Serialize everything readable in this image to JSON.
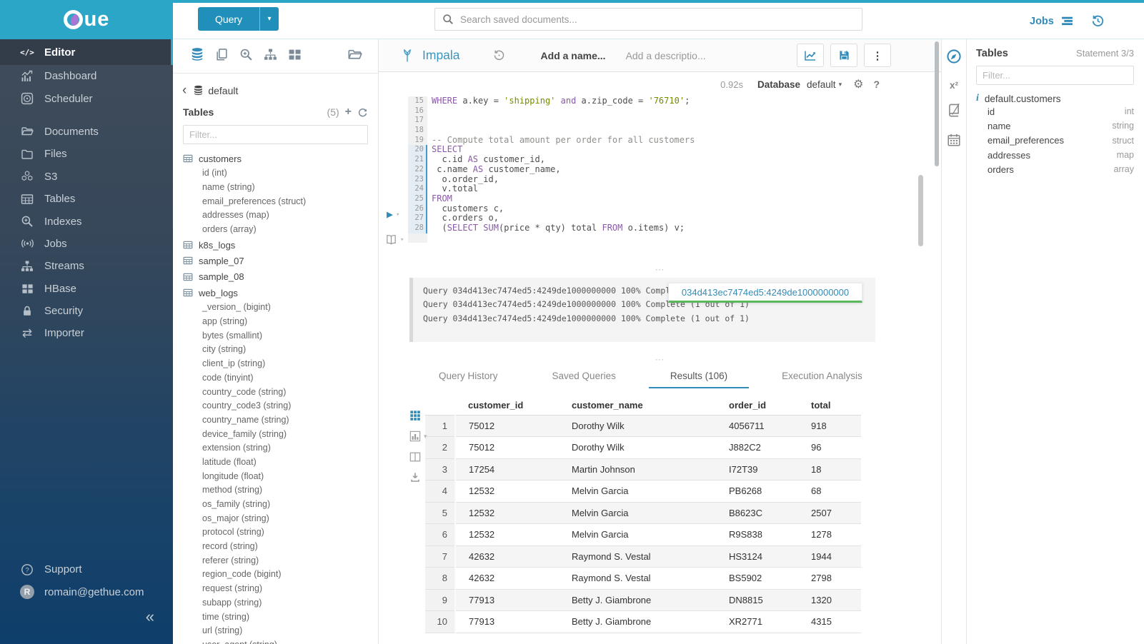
{
  "colors": {
    "brand_teal": "#2BA6C7",
    "primary_blue": "#338bb8",
    "success_green": "#5cb85c"
  },
  "topbar": {
    "query_label": "Query",
    "search_placeholder": "Search saved documents...",
    "jobs_label": "Jobs"
  },
  "sidebar": {
    "items": [
      {
        "label": "Editor",
        "icon": "code",
        "active": true
      },
      {
        "label": "Dashboard",
        "icon": "dashboard"
      },
      {
        "label": "Scheduler",
        "icon": "scheduler",
        "gap_after": true
      },
      {
        "label": "Documents",
        "icon": "folder-open"
      },
      {
        "label": "Files",
        "icon": "folder"
      },
      {
        "label": "S3",
        "icon": "cubes"
      },
      {
        "label": "Tables",
        "icon": "table"
      },
      {
        "label": "Indexes",
        "icon": "search-plus"
      },
      {
        "label": "Jobs",
        "icon": "broadcast"
      },
      {
        "label": "Streams",
        "icon": "sitemap"
      },
      {
        "label": "HBase",
        "icon": "grid"
      },
      {
        "label": "Security",
        "icon": "lock"
      },
      {
        "label": "Importer",
        "icon": "exchange"
      }
    ],
    "support_label": "Support",
    "user_email": "romain@gethue.com",
    "avatar_letter": "R",
    "collapse_glyph": "«"
  },
  "assist": {
    "breadcrumb": "default",
    "tables_label": "Tables",
    "count": "(5)",
    "filter_placeholder": "Filter...",
    "tables": [
      {
        "name": "customers",
        "columns": [
          "id (int)",
          "name (string)",
          "email_preferences (struct)",
          "addresses (map)",
          "orders (array)"
        ]
      },
      {
        "name": "k8s_logs",
        "columns": []
      },
      {
        "name": "sample_07",
        "columns": []
      },
      {
        "name": "sample_08",
        "columns": []
      },
      {
        "name": "web_logs",
        "columns": [
          "_version_ (bigint)",
          "app (string)",
          "bytes (smallint)",
          "city (string)",
          "client_ip (string)",
          "code (tinyint)",
          "country_code (string)",
          "country_code3 (string)",
          "country_name (string)",
          "device_family (string)",
          "extension (string)",
          "latitude (float)",
          "longitude (float)",
          "method (string)",
          "os_family (string)",
          "os_major (string)",
          "protocol (string)",
          "record (string)",
          "referer (string)",
          "region_code (bigint)",
          "request (string)",
          "subapp (string)",
          "time (string)",
          "url (string)",
          "user_agent (string)"
        ]
      }
    ]
  },
  "editor": {
    "engine": "Impala",
    "name_placeholder": "Add a name...",
    "desc_placeholder": "Add a descriptio...",
    "exec_time": "0.92s",
    "database_label": "Database",
    "database_value": "default",
    "code": {
      "active_from": 20,
      "active_to": 28,
      "lines": [
        {
          "n": 15,
          "seg": [
            [
              "WHERE ",
              "k"
            ],
            [
              "a.key = ",
              "t"
            ],
            [
              "'shipping'",
              "s"
            ],
            [
              " ",
              "t"
            ],
            [
              "and",
              "k"
            ],
            [
              " a.zip_code = ",
              "t"
            ],
            [
              "'76710'",
              "s"
            ],
            [
              ";",
              "t"
            ]
          ]
        },
        {
          "n": 16,
          "seg": []
        },
        {
          "n": 17,
          "seg": []
        },
        {
          "n": 18,
          "seg": []
        },
        {
          "n": 19,
          "seg": [
            [
              "-- Compute total amount per order for all customers",
              "c"
            ]
          ]
        },
        {
          "n": 20,
          "seg": [
            [
              "SELECT",
              "k"
            ]
          ]
        },
        {
          "n": 21,
          "seg": [
            [
              "  c.id ",
              "t"
            ],
            [
              "AS",
              "k"
            ],
            [
              " customer_id,",
              "t"
            ]
          ]
        },
        {
          "n": 22,
          "seg": [
            [
              " c.name ",
              "t"
            ],
            [
              "AS",
              "k"
            ],
            [
              " customer_name,",
              "t"
            ]
          ]
        },
        {
          "n": 23,
          "seg": [
            [
              "  o.order_id,",
              "t"
            ]
          ]
        },
        {
          "n": 24,
          "seg": [
            [
              "  v.total",
              "t"
            ]
          ]
        },
        {
          "n": 25,
          "seg": [
            [
              "FROM",
              "k"
            ]
          ]
        },
        {
          "n": 26,
          "seg": [
            [
              "  customers c,",
              "t"
            ]
          ]
        },
        {
          "n": 27,
          "seg": [
            [
              "  c.orders o,",
              "t"
            ]
          ]
        },
        {
          "n": 28,
          "seg": [
            [
              "  (",
              "t"
            ],
            [
              "SELECT",
              "k"
            ],
            [
              " ",
              "t"
            ],
            [
              "SUM",
              "k"
            ],
            [
              "(price * qty) total ",
              "t"
            ],
            [
              "FROM",
              "k"
            ],
            [
              " o.items) v;",
              "t"
            ]
          ]
        }
      ]
    },
    "logs": [
      "Query 034d413ec7474ed5:4249de1000000000 100% Complete (1 out of 1)",
      "Query 034d413ec7474ed5:4249de1000000000 100% Complete (1 out of 1)",
      "Query 034d413ec7474ed5:4249de1000000000 100% Complete (1 out of 1)"
    ],
    "popover_text": "034d413ec7474ed5:4249de1000000000",
    "tabs": [
      {
        "label": "Query History"
      },
      {
        "label": "Saved Queries"
      },
      {
        "label": "Results (106)",
        "active": true
      },
      {
        "label": "Execution Analysis"
      }
    ]
  },
  "results": {
    "columns": [
      "customer_id",
      "customer_name",
      "order_id",
      "total"
    ],
    "rows": [
      [
        "1",
        "75012",
        "Dorothy Wilk",
        "4056711",
        "918"
      ],
      [
        "2",
        "75012",
        "Dorothy Wilk",
        "J882C2",
        "96"
      ],
      [
        "3",
        "17254",
        "Martin Johnson",
        "I72T39",
        "18"
      ],
      [
        "4",
        "12532",
        "Melvin Garcia",
        "PB6268",
        "68"
      ],
      [
        "5",
        "12532",
        "Melvin Garcia",
        "B8623C",
        "2507"
      ],
      [
        "6",
        "12532",
        "Melvin Garcia",
        "R9S838",
        "1278"
      ],
      [
        "7",
        "42632",
        "Raymond S. Vestal",
        "HS3124",
        "1944"
      ],
      [
        "8",
        "42632",
        "Raymond S. Vestal",
        "BS5902",
        "2798"
      ],
      [
        "9",
        "77913",
        "Betty J. Giambrone",
        "DN8815",
        "1320"
      ],
      [
        "10",
        "77913",
        "Betty J. Giambrone",
        "XR2771",
        "4315"
      ]
    ]
  },
  "right_panel": {
    "title": "Tables",
    "statement": "Statement 3/3",
    "filter_placeholder": "Filter...",
    "table_name": "default.customers",
    "columns": [
      {
        "name": "id",
        "type": "int"
      },
      {
        "name": "name",
        "type": "string"
      },
      {
        "name": "email_preferences",
        "type": "struct"
      },
      {
        "name": "addresses",
        "type": "map"
      },
      {
        "name": "orders",
        "type": "array"
      }
    ]
  }
}
